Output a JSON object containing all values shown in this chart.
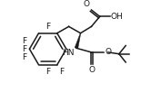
{
  "bg_color": "#ffffff",
  "line_color": "#1a1a1a",
  "line_width": 1.1,
  "font_size": 6.5,
  "font_family": "DejaVu Sans",
  "figsize": [
    1.66,
    1.03
  ],
  "dpi": 100,
  "xlim": [
    0,
    1.66
  ],
  "ylim": [
    0,
    1.03
  ]
}
